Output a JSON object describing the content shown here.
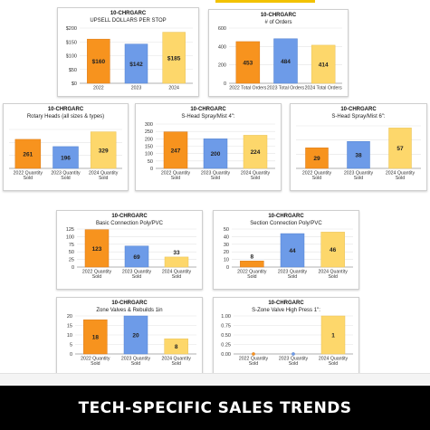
{
  "footer": {
    "title": "TECH-SPECIFIC SALES TRENDS"
  },
  "colors": {
    "orange": "#f7931e",
    "blue": "#6d9be8",
    "yellow": "#fdd76b"
  },
  "chart_data": [
    {
      "type": "bar",
      "title": "10-CHRGARC",
      "subtitle": "UPSELL DOLLARS PER STOP",
      "categories": [
        "2022",
        "2023",
        "2024"
      ],
      "values": [
        160,
        142,
        185
      ],
      "value_labels": [
        "$160",
        "$142",
        "$185"
      ],
      "ylim": [
        0,
        200
      ],
      "yticks": [
        0,
        50,
        100,
        150,
        200
      ],
      "ytick_labels": [
        "$0",
        "$50",
        "$100",
        "$150",
        "$200"
      ],
      "grid": true
    },
    {
      "type": "bar",
      "title": "10-CHRGARC",
      "subtitle": "# of Orders",
      "categories": [
        "2022 Total Orders",
        "2023 Total Orders",
        "2024 Total Orders"
      ],
      "values": [
        453,
        484,
        414
      ],
      "ylim": [
        0,
        600
      ],
      "yticks": [
        0,
        200,
        400,
        600
      ],
      "grid": true
    },
    {
      "type": "bar",
      "title": "10-CHRGARC",
      "subtitle": "Rotary Heads (all sizes & types)",
      "categories": [
        "2022 Quantity Sold",
        "2023 Quantity Sold",
        "2024 Quantity Sold"
      ],
      "values": [
        261,
        196,
        329
      ],
      "ylim": [
        0,
        350
      ],
      "yticks": [],
      "grid": true
    },
    {
      "type": "bar",
      "title": "10-CHRGARC",
      "subtitle": "S-Head Spray/Mist 4\":",
      "categories": [
        "2022 Quantity Sold",
        "2023 Quantity Sold",
        "2024 Quantity Sold"
      ],
      "values": [
        247,
        200,
        224
      ],
      "ylim": [
        0,
        300
      ],
      "yticks": [
        0,
        50,
        100,
        150,
        200,
        250,
        300
      ],
      "grid": true
    },
    {
      "type": "bar",
      "title": "10-CHRGARC",
      "subtitle": "S-Head Spray/Mist 6\":",
      "categories": [
        "2022 Quantity Sold",
        "2023 Quantity Sold",
        "2024 Quantity Sold"
      ],
      "values": [
        29,
        38,
        57
      ],
      "ylim": [
        0,
        60
      ],
      "yticks": [],
      "grid": true
    },
    {
      "type": "bar",
      "title": "10-CHRGARC",
      "subtitle": "Basic Connection Poly/PVC",
      "categories": [
        "2022 Quantity Sold",
        "2023 Quantity Sold",
        "2024 Quantity Sold"
      ],
      "values": [
        123,
        69,
        33
      ],
      "ylim": [
        0,
        125
      ],
      "yticks": [
        0,
        25,
        50,
        75,
        100,
        125
      ],
      "grid": true
    },
    {
      "type": "bar",
      "title": "10-CHRGARC",
      "subtitle": "Section Connection Poly/PVC",
      "categories": [
        "2022 Quantity Sold",
        "2023 Quantity Sold",
        "2024 Quantity Sold"
      ],
      "values": [
        8,
        44,
        46
      ],
      "ylim": [
        0,
        50
      ],
      "yticks": [
        0,
        10,
        20,
        30,
        40,
        50
      ],
      "grid": true
    },
    {
      "type": "bar",
      "title": "10-CHRGARC",
      "subtitle": "Zone Valves & Rebuilds 1in",
      "categories": [
        "2022 Quantity Sold",
        "2023 Quantity Sold",
        "2024 Quantity Sold"
      ],
      "values": [
        18,
        20,
        8
      ],
      "ylim": [
        0,
        20
      ],
      "yticks": [
        0,
        5,
        10,
        15,
        20
      ],
      "grid": true
    },
    {
      "type": "bar",
      "title": "10-CHRGARC",
      "subtitle": "S-Zone Valve High Press 1\":",
      "categories": [
        "2022 Quantity Sold",
        "2023 Quantity Sold",
        "2024 Quantity Sold"
      ],
      "values": [
        0,
        0,
        1
      ],
      "ylim": [
        0,
        1
      ],
      "yticks": [
        0,
        0.25,
        0.5,
        0.75,
        1
      ],
      "ytick_labels": [
        "0.00",
        "0.25",
        "0.50",
        "0.75",
        "1.00"
      ],
      "grid": true
    }
  ]
}
